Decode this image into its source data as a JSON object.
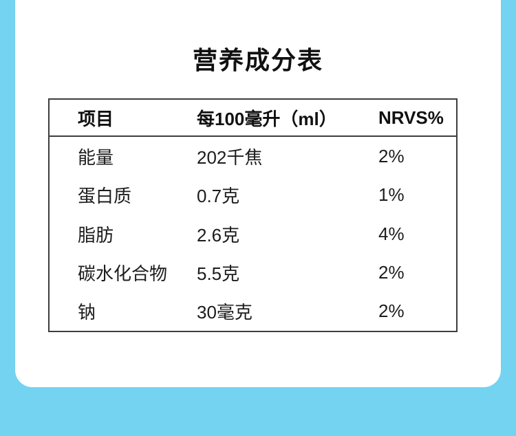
{
  "page": {
    "background_color": "#73d3f0",
    "card_color": "#ffffff",
    "table_border_color": "#3d3d3d"
  },
  "title": "营养成分表",
  "table": {
    "headers": [
      "项目",
      "每100毫升（ml）",
      "NRVS%"
    ],
    "rows": [
      {
        "item": "能量",
        "amount": "202千焦",
        "nrv": "2%"
      },
      {
        "item": "蛋白质",
        "amount": "0.7克",
        "nrv": "1%"
      },
      {
        "item": "脂肪",
        "amount": "2.6克",
        "nrv": "4%"
      },
      {
        "item": "碳水化合物",
        "amount": "5.5克",
        "nrv": "2%"
      },
      {
        "item": "钠",
        "amount": "30毫克",
        "nrv": "2%"
      }
    ]
  }
}
